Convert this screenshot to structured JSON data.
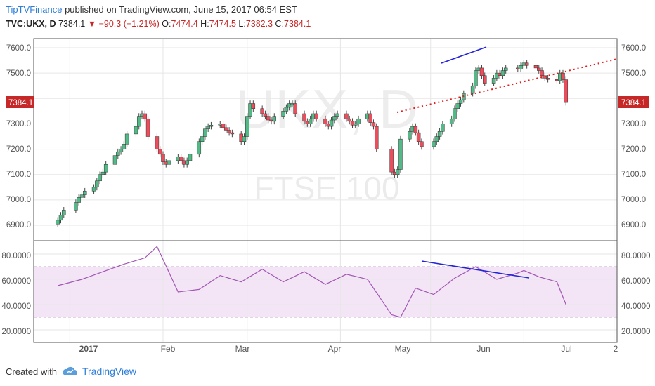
{
  "header": {
    "publisher": "TipTVFinance",
    "published_text": "published on TradingView.com, June 15, 2017 06:54 EST",
    "symbol": "TVC:UKX, D",
    "last": "7384.1",
    "change_arrow": "▼",
    "change": "−90.3 (−1.21%)",
    "o_label": "O:",
    "o_value": "7474.4",
    "h_label": "H:",
    "h_value": "7474.5",
    "l_label": "L:",
    "l_value": "7382.3",
    "c_label": "C:",
    "c_value": "7384.1"
  },
  "watermark": {
    "symbol": "UKX, D",
    "name": "FTSE 100"
  },
  "price_axis": {
    "ticks": [
      "7600.0",
      "7500.0",
      "7300.0",
      "7200.0",
      "7100.0",
      "7000.0",
      "6900.0"
    ],
    "last_label": "7384.1"
  },
  "rsi_axis": {
    "ticks": [
      "80.0000",
      "60.0000",
      "40.0000",
      "20.0000"
    ]
  },
  "x_axis": {
    "labels": [
      "2017",
      "Feb",
      "Mar",
      "Apr",
      "May",
      "Jun",
      "Jul",
      "2"
    ]
  },
  "footer": {
    "created_with": "Created with",
    "brand": "TradingView"
  },
  "colors": {
    "up": "#53b987",
    "down": "#eb4d5c",
    "wick": "#444444",
    "rsi_line": "#a256b5",
    "rsi_band": "#f3e5f5",
    "trend_blue": "#2323d9",
    "trend_red": "#e02020",
    "last_price_bg": "#c62828"
  },
  "chart_data": [
    {
      "type": "candlestick",
      "title": "TVC:UKX, D",
      "x": [
        "2016-12-28",
        "2016-12-29",
        "2016-12-30",
        "2017-01-03",
        "2017-01-04",
        "2017-01-05",
        "2017-01-06",
        "2017-01-09",
        "2017-01-10",
        "2017-01-11",
        "2017-01-12",
        "2017-01-13",
        "2017-01-16",
        "2017-01-17",
        "2017-01-18",
        "2017-01-19",
        "2017-01-20",
        "2017-01-23",
        "2017-01-24",
        "2017-01-25",
        "2017-01-26",
        "2017-01-27",
        "2017-01-30",
        "2017-01-31",
        "2017-02-01",
        "2017-02-02",
        "2017-02-03",
        "2017-02-06",
        "2017-02-07",
        "2017-02-08",
        "2017-02-09",
        "2017-02-10",
        "2017-02-13",
        "2017-02-14",
        "2017-02-15",
        "2017-02-16",
        "2017-02-17",
        "2017-02-20",
        "2017-02-21",
        "2017-02-22",
        "2017-02-23",
        "2017-02-24",
        "2017-02-27",
        "2017-02-28",
        "2017-03-01",
        "2017-03-02",
        "2017-03-03",
        "2017-03-06",
        "2017-03-07",
        "2017-03-08",
        "2017-03-09",
        "2017-03-10",
        "2017-03-13",
        "2017-03-14",
        "2017-03-15",
        "2017-03-16",
        "2017-03-17",
        "2017-03-20",
        "2017-03-21",
        "2017-03-22",
        "2017-03-23",
        "2017-03-24",
        "2017-03-27",
        "2017-03-28",
        "2017-03-29",
        "2017-03-30",
        "2017-03-31",
        "2017-04-03",
        "2017-04-04",
        "2017-04-05",
        "2017-04-06",
        "2017-04-07",
        "2017-04-10",
        "2017-04-11",
        "2017-04-12",
        "2017-04-13",
        "2017-04-18",
        "2017-04-19",
        "2017-04-20",
        "2017-04-21",
        "2017-04-24",
        "2017-04-25",
        "2017-04-26",
        "2017-04-27",
        "2017-04-28",
        "2017-05-02",
        "2017-05-03",
        "2017-05-04",
        "2017-05-05",
        "2017-05-08",
        "2017-05-09",
        "2017-05-10",
        "2017-05-11",
        "2017-05-12",
        "2017-05-15",
        "2017-05-16",
        "2017-05-17",
        "2017-05-18",
        "2017-05-19",
        "2017-05-22",
        "2017-05-23",
        "2017-05-24",
        "2017-05-25",
        "2017-05-26",
        "2017-05-30",
        "2017-05-31",
        "2017-06-01",
        "2017-06-02",
        "2017-06-05",
        "2017-06-06",
        "2017-06-07",
        "2017-06-08",
        "2017-06-09",
        "2017-06-12",
        "2017-06-13",
        "2017-06-14",
        "2017-06-15"
      ],
      "close": [
        6920,
        6940,
        6960,
        6990,
        7010,
        7020,
        7035,
        7050,
        7075,
        7100,
        7110,
        7140,
        7175,
        7190,
        7200,
        7220,
        7260,
        7290,
        7330,
        7340,
        7320,
        7250,
        7200,
        7180,
        7150,
        7140,
        7155,
        7170,
        7155,
        7140,
        7155,
        7180,
        7230,
        7250,
        7280,
        7290,
        7295,
        7300,
        7285,
        7275,
        7265,
        7260,
        7230,
        7250,
        7330,
        7380,
        7360,
        7340,
        7330,
        7315,
        7310,
        7330,
        7350,
        7365,
        7380,
        7380,
        7340,
        7310,
        7300,
        7320,
        7340,
        7320,
        7300,
        7290,
        7315,
        7330,
        7340,
        7320,
        7310,
        7295,
        7300,
        7320,
        7340,
        7305,
        7290,
        7200,
        7110,
        7100,
        7120,
        7240,
        7270,
        7290,
        7265,
        7230,
        7210,
        7230,
        7250,
        7270,
        7300,
        7320,
        7360,
        7380,
        7395,
        7420,
        7450,
        7510,
        7520,
        7490,
        7460,
        7480,
        7500,
        7490,
        7510,
        7520,
        7515,
        7530,
        7540,
        7530,
        7520,
        7510,
        7490,
        7480,
        7475,
        7470,
        7500,
        7474,
        7384
      ],
      "note": "daily candles, values read from chart (approx.); open of each day approx. previous close"
    },
    {
      "type": "line",
      "title": "RSI",
      "x": [
        "2016-12-28",
        "2017-01-05",
        "2017-01-12",
        "2017-01-19",
        "2017-01-26",
        "2017-01-30",
        "2017-02-06",
        "2017-02-13",
        "2017-02-20",
        "2017-02-27",
        "2017-03-06",
        "2017-03-13",
        "2017-03-20",
        "2017-03-27",
        "2017-04-03",
        "2017-04-10",
        "2017-04-18",
        "2017-04-21",
        "2017-04-26",
        "2017-05-02",
        "2017-05-09",
        "2017-05-16",
        "2017-05-23",
        "2017-05-30",
        "2017-06-01",
        "2017-06-06",
        "2017-06-12",
        "2017-06-15"
      ],
      "values": [
        55,
        60,
        66,
        72,
        77,
        86,
        50,
        52,
        63,
        58,
        68,
        58,
        66,
        56,
        64,
        60,
        32,
        30,
        53,
        48,
        61,
        70,
        60,
        65,
        67,
        62,
        58,
        40
      ],
      "ylim": [
        15,
        90
      ],
      "bands": [
        30,
        70
      ]
    }
  ]
}
